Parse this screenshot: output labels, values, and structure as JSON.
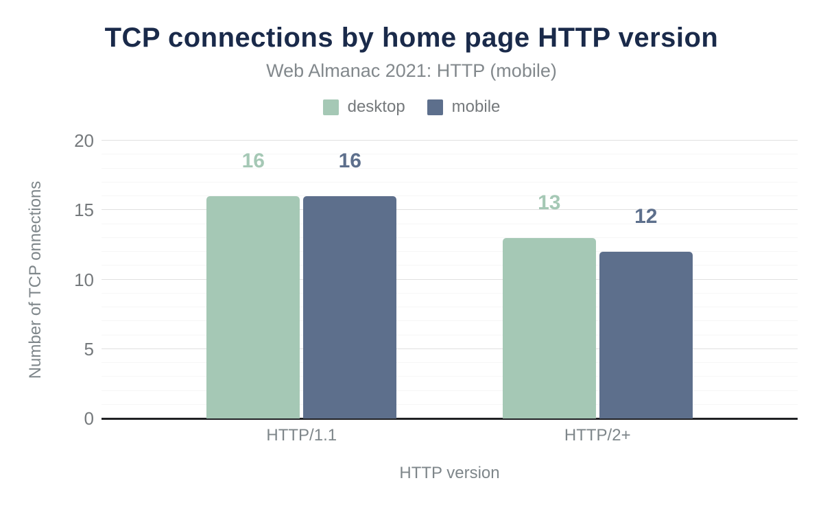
{
  "chart_data": {
    "type": "bar",
    "title": "TCP connections by home page HTTP version",
    "subtitle": "Web Almanac 2021: HTTP (mobile)",
    "categories": [
      "HTTP/1.1",
      "HTTP/2+"
    ],
    "series": [
      {
        "name": "desktop",
        "color": "#a5c8b5",
        "values": [
          16,
          13
        ]
      },
      {
        "name": "mobile",
        "color": "#5d6f8c",
        "values": [
          16,
          12
        ]
      }
    ],
    "xlabel": "HTTP version",
    "ylabel": "Number of TCP onnections",
    "ylim": [
      0,
      20
    ],
    "yticks": [
      0,
      5,
      10,
      15,
      20
    ],
    "minor_grid_step": 1,
    "grid": true,
    "legend_position": "top",
    "value_labels": true
  },
  "colors": {
    "title": "#1a2a4a",
    "subtitle": "#82888c",
    "axis_text": "#7e868a",
    "tick_text": "#75797c",
    "axis_line": "#202124",
    "major_grid": "#e0e0e0",
    "minor_grid": "#f6f6f6",
    "background": "#ffffff"
  }
}
